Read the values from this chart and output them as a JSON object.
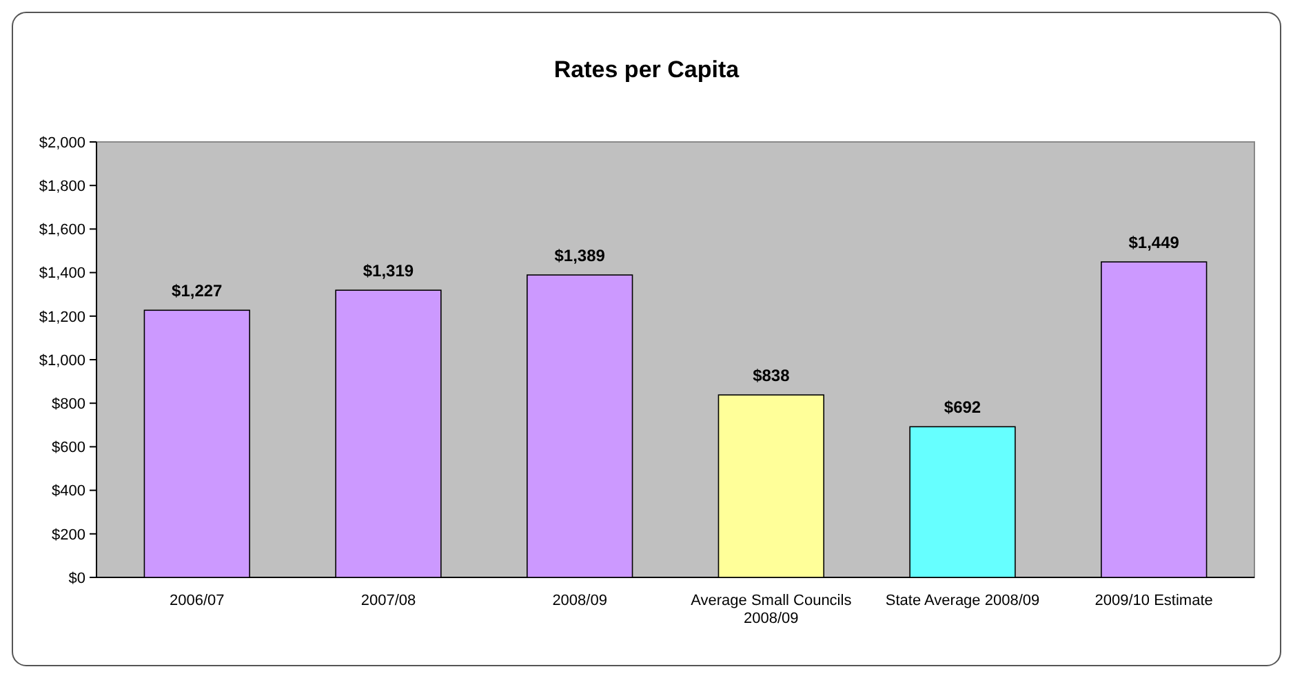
{
  "chart_data": {
    "type": "bar",
    "title": "Rates per Capita",
    "categories": [
      "2006/07",
      "2007/08",
      "2008/09",
      "Average Small Councils 2008/09",
      "State Average 2008/09",
      "2009/10 Estimate"
    ],
    "values": [
      1227,
      1319,
      1389,
      838,
      692,
      1449
    ],
    "colors": [
      "#cc99ff",
      "#cc99ff",
      "#cc99ff",
      "#ffff99",
      "#66ffff",
      "#cc99ff"
    ],
    "value_labels": [
      "$1,227",
      "$1,319",
      "$1,389",
      "$838",
      "$692",
      "$1,449"
    ],
    "ylim": [
      0,
      2000
    ],
    "yticks": [
      {
        "value": 0,
        "label": "$0"
      },
      {
        "value": 200,
        "label": "$200"
      },
      {
        "value": 400,
        "label": "$400"
      },
      {
        "value": 600,
        "label": "$600"
      },
      {
        "value": 800,
        "label": "$800"
      },
      {
        "value": 1000,
        "label": "$1,000"
      },
      {
        "value": 1200,
        "label": "$1,200"
      },
      {
        "value": 1400,
        "label": "$1,400"
      },
      {
        "value": 1600,
        "label": "$1,600"
      },
      {
        "value": 1800,
        "label": "$1,800"
      },
      {
        "value": 2000,
        "label": "$2,000"
      }
    ],
    "grid": false
  }
}
